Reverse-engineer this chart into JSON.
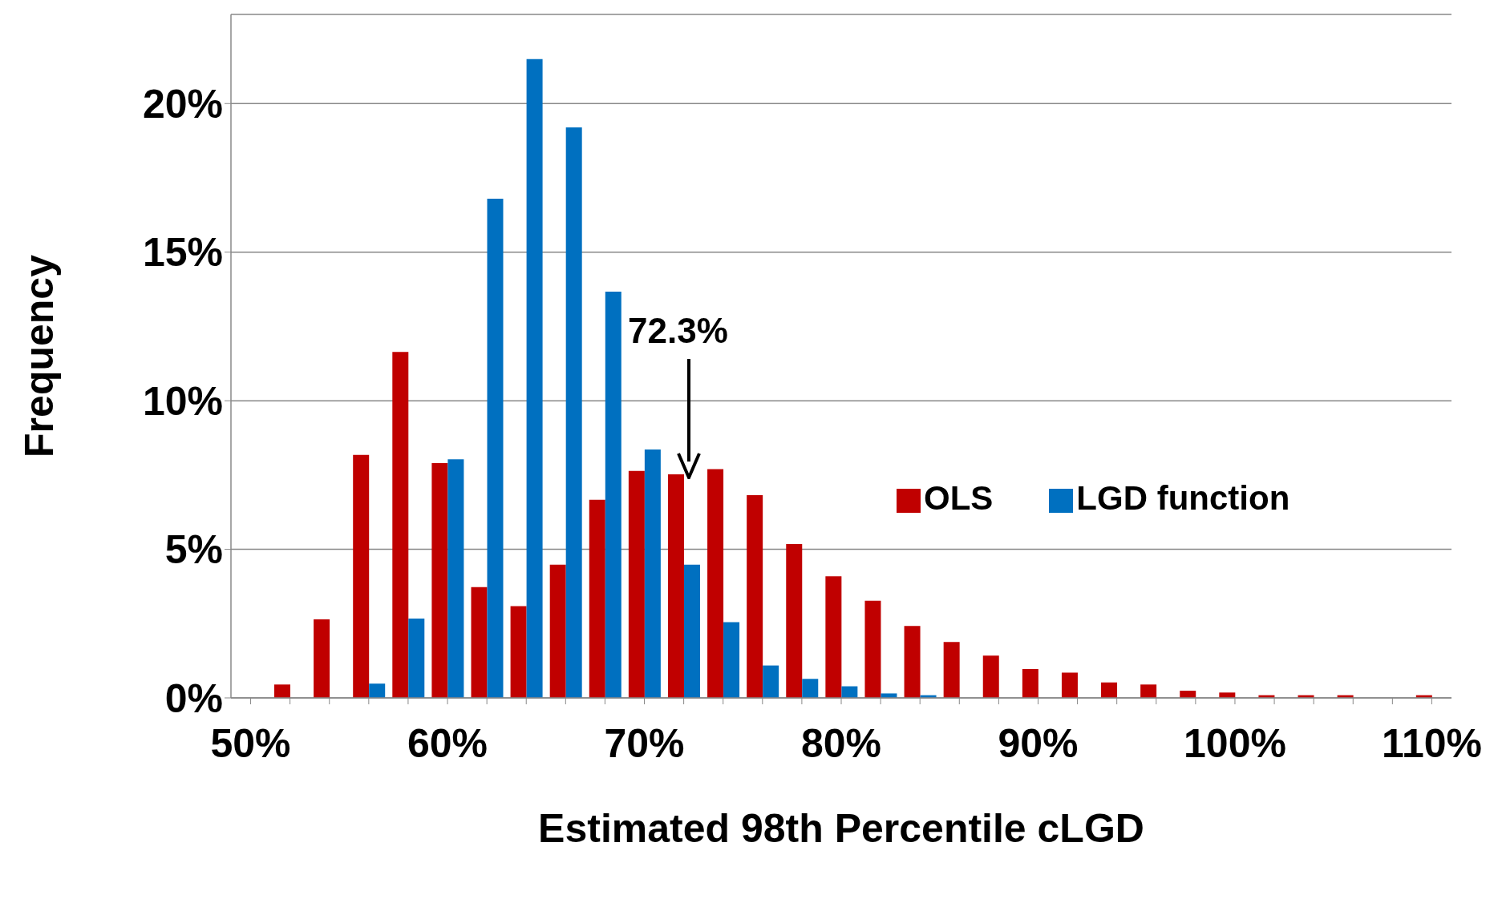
{
  "chart_data": {
    "type": "bar",
    "xlabel": "Estimated 98th Percentile cLGD",
    "ylabel": "Frequency",
    "categories": [
      "50%",
      null,
      null,
      null,
      null,
      "60%",
      null,
      null,
      null,
      null,
      "70%",
      null,
      null,
      null,
      null,
      "80%",
      null,
      null,
      null,
      null,
      "90%",
      null,
      null,
      null,
      null,
      "100%",
      null,
      null,
      null,
      null,
      "110%"
    ],
    "series": [
      {
        "name": "OLS",
        "color": "#c00000",
        "values": [
          0,
          0.45,
          2.64,
          8.18,
          11.64,
          7.9,
          3.73,
          3.09,
          4.48,
          6.67,
          7.64,
          7.52,
          7.7,
          6.82,
          5.18,
          4.09,
          3.27,
          2.42,
          1.88,
          1.42,
          0.97,
          0.85,
          0.52,
          0.45,
          0.24,
          0.18,
          0.09,
          0.09,
          0.09,
          null,
          0.09
        ]
      },
      {
        "name": "LGD function",
        "color": "#0070c0",
        "values": [
          0,
          0,
          null,
          0.48,
          2.67,
          8.03,
          16.8,
          21.5,
          19.2,
          13.67,
          8.36,
          4.48,
          2.55,
          1.09,
          0.64,
          0.39,
          0.15,
          0.09,
          null,
          null,
          0,
          0,
          0,
          0,
          0,
          0,
          0,
          0,
          0,
          0,
          0
        ]
      }
    ],
    "ylim": [
      0,
      23
    ],
    "yticks": [
      {
        "value": 0,
        "label": "0%"
      },
      {
        "value": 5,
        "label": "5%"
      },
      {
        "value": 10,
        "label": "10%"
      },
      {
        "value": 15,
        "label": "15%"
      },
      {
        "value": 20,
        "label": "20%"
      }
    ],
    "grid": "y",
    "legend": "right",
    "annotations": [
      "72.3%"
    ]
  }
}
